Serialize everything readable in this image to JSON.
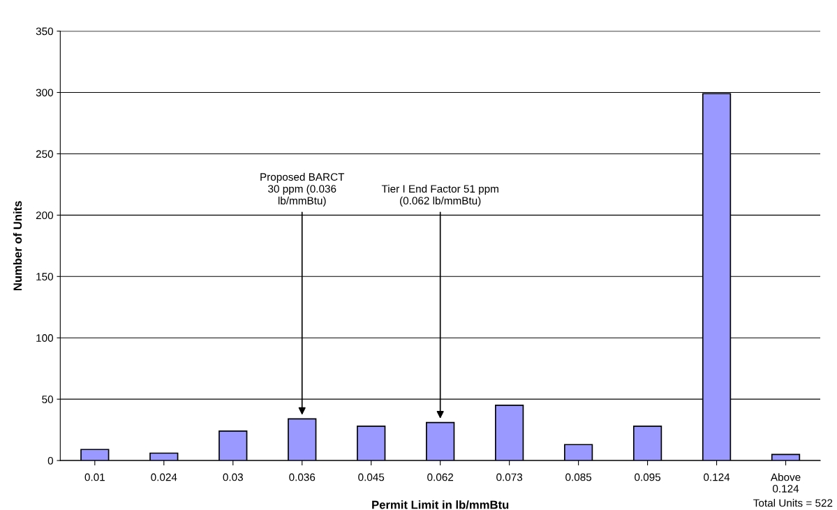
{
  "chart_data": {
    "type": "bar",
    "xlabel": "Permit Limit in lb/mmBtu",
    "ylabel": "Number of Units",
    "categories": [
      "0.01",
      "0.024",
      "0.03",
      "0.036",
      "0.045",
      "0.062",
      "0.073",
      "0.085",
      "0.095",
      "0.124",
      "Above\n0.124"
    ],
    "values": [
      9,
      6,
      24,
      34,
      28,
      31,
      45,
      13,
      28,
      299,
      5
    ],
    "color": "#9999ff",
    "ylim": [
      0,
      350
    ],
    "yticks": [
      0,
      50,
      100,
      150,
      200,
      250,
      300,
      350
    ],
    "grid": "y",
    "legend": false,
    "annotations": [
      {
        "text": "Proposed BARCT\n30 ppm (0.036\nlb/mmBtu)",
        "x": "0.036",
        "y": 34
      },
      {
        "text": "Tier I End Factor 51 ppm\n(0.062 lb/mmBtu)",
        "x": "0.062",
        "y": 31
      },
      "Total Units = 522"
    ]
  }
}
